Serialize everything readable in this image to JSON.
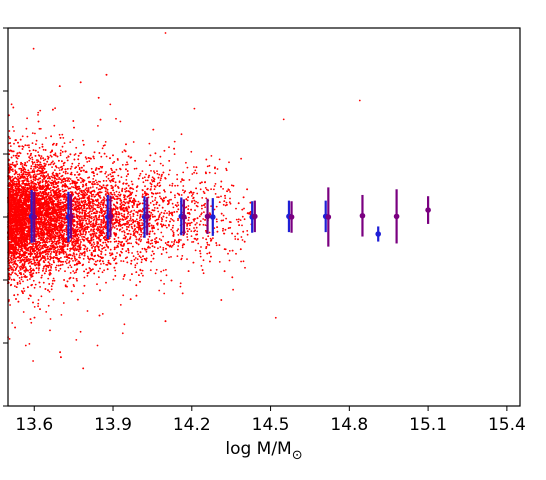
{
  "chart_data": {
    "type": "scatter",
    "title": "",
    "xlabel": "log M/M",
    "xlabel_subscript": "⊙",
    "ylabel": "",
    "xlim": [
      13.5,
      15.45
    ],
    "ylim": [
      -3.0,
      3.0
    ],
    "xticks": [
      13.6,
      13.9,
      14.2,
      14.5,
      14.8,
      15.1,
      15.4
    ],
    "xtick_labels": [
      "13.6",
      "13.9",
      "14.2",
      "14.5",
      "14.8",
      "15.1",
      "15.4"
    ],
    "yticks": [
      -3,
      -2,
      -1,
      0,
      1,
      2,
      3
    ],
    "ytick_labels": [],
    "grid": false,
    "legend": "none",
    "colors": {
      "scatter": "#ff0000",
      "errorbar_blue": "#1f1fd6",
      "errorbar_purple": "#7a0080"
    },
    "scatter_description_points": [
      {
        "x": 14.1,
        "y": 2.92
      },
      {
        "x": 14.84,
        "y": 1.85
      },
      {
        "x": 14.21,
        "y": 1.72
      },
      {
        "x": 14.55,
        "y": 1.55
      },
      {
        "x": 13.76,
        "y": -1.95
      },
      {
        "x": 13.66,
        "y": -1.8
      },
      {
        "x": 14.52,
        "y": -1.6
      },
      {
        "x": 13.52,
        "y": -0.85
      }
    ],
    "series": [
      {
        "color": "blue",
        "points": [
          {
            "x": 13.59,
            "y": 0.01,
            "err": 0.42
          },
          {
            "x": 13.73,
            "y": 0.0,
            "err": 0.4
          },
          {
            "x": 13.88,
            "y": 0.0,
            "err": 0.35
          },
          {
            "x": 14.02,
            "y": 0.0,
            "err": 0.33
          },
          {
            "x": 14.16,
            "y": 0.01,
            "err": 0.3
          },
          {
            "x": 14.28,
            "y": 0.0,
            "err": 0.3
          },
          {
            "x": 14.43,
            "y": 0.0,
            "err": 0.25
          },
          {
            "x": 14.57,
            "y": 0.01,
            "err": 0.25
          },
          {
            "x": 14.71,
            "y": 0.01,
            "err": 0.25
          },
          {
            "x": 14.91,
            "y": -0.27,
            "err": 0.12
          }
        ]
      },
      {
        "color": "purple",
        "points": [
          {
            "x": 13.6,
            "y": 0.0,
            "err": 0.4
          },
          {
            "x": 13.74,
            "y": 0.01,
            "err": 0.35
          },
          {
            "x": 13.89,
            "y": 0.01,
            "err": 0.33
          },
          {
            "x": 14.03,
            "y": 0.01,
            "err": 0.3
          },
          {
            "x": 14.17,
            "y": 0.0,
            "err": 0.28
          },
          {
            "x": 14.26,
            "y": 0.01,
            "err": 0.28
          },
          {
            "x": 14.44,
            "y": 0.01,
            "err": 0.25
          },
          {
            "x": 14.58,
            "y": 0.0,
            "err": 0.25
          },
          {
            "x": 14.72,
            "y": 0.0,
            "err": 0.47
          },
          {
            "x": 14.85,
            "y": 0.02,
            "err": 0.33
          },
          {
            "x": 14.98,
            "y": 0.01,
            "err": 0.43
          },
          {
            "x": 15.1,
            "y": 0.11,
            "err": 0.22
          }
        ]
      }
    ]
  }
}
